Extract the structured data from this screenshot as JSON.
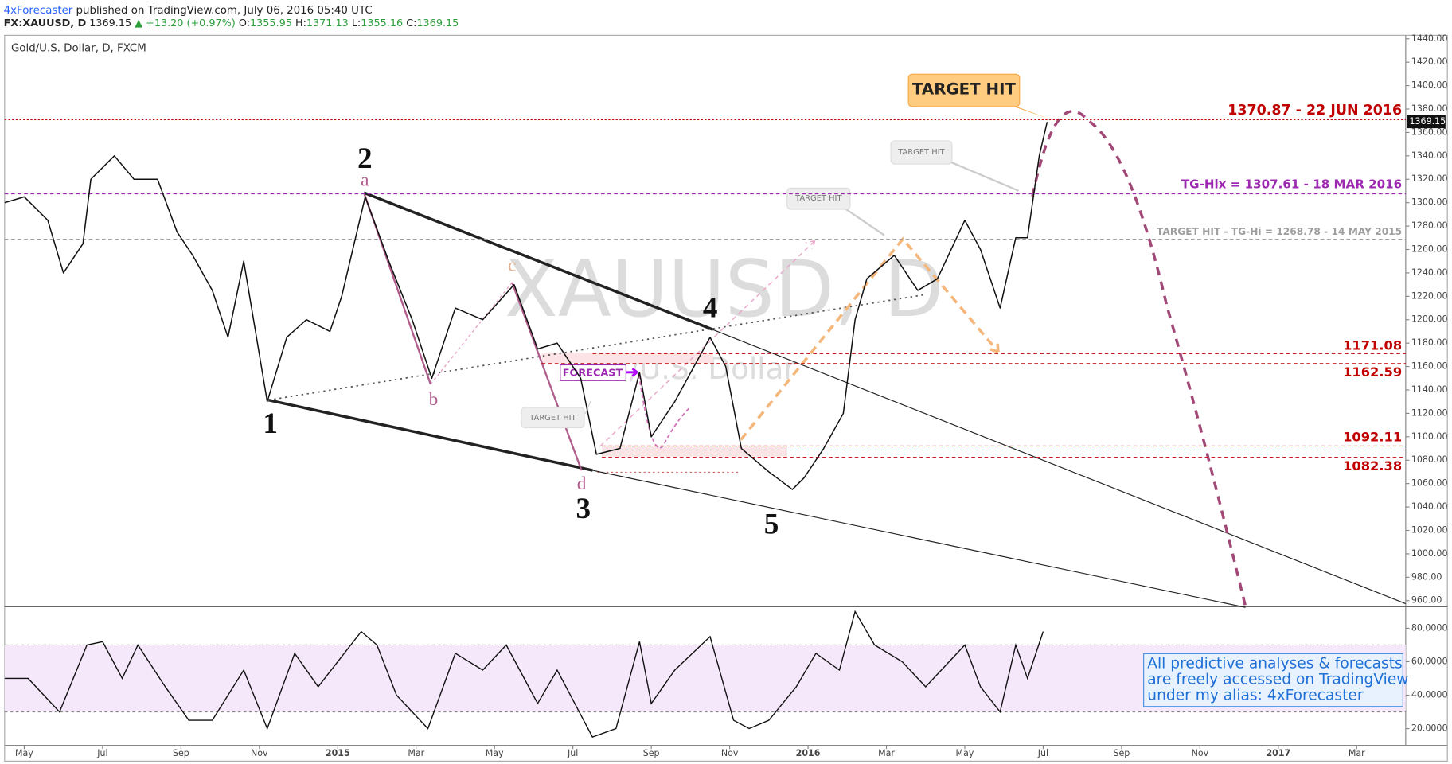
{
  "chart_data": {
    "type": "line",
    "publisher": "4xForecaster",
    "published": "published on TradingView.com, July 06, 2016 05:40 UTC",
    "symbol": "FX:XAUUSD, D",
    "last": 1369.15,
    "change": "+13.20 (+0.97%)",
    "ohlc": [
      {
        "label": "O:",
        "value": 1355.95
      },
      {
        "label": "H:",
        "value": 1371.13
      },
      {
        "label": "L:",
        "value": 1355.16
      },
      {
        "label": "C:",
        "value": 1369.15
      }
    ],
    "title": "Gold/U.S. Dollar, D, FXCM",
    "watermark": [
      "XAUUSD, D",
      "Gold/U.S. Dollar"
    ],
    "xlim": [
      -0.5,
      35.25
    ],
    "xticks": [
      {
        "value": 0,
        "label": "May"
      },
      {
        "value": 2,
        "label": "Jul"
      },
      {
        "value": 4,
        "label": "Sep"
      },
      {
        "value": 6,
        "label": "Nov"
      },
      {
        "value": 8,
        "label": "2015"
      },
      {
        "value": 10,
        "label": "Mar"
      },
      {
        "value": 12,
        "label": "May"
      },
      {
        "value": 14,
        "label": "Jul"
      },
      {
        "value": 16,
        "label": "Sep"
      },
      {
        "value": 18,
        "label": "Nov"
      },
      {
        "value": 20,
        "label": "2016"
      },
      {
        "value": 22,
        "label": "Mar"
      },
      {
        "value": 24,
        "label": "May"
      },
      {
        "value": 26,
        "label": "Jul"
      },
      {
        "value": 28,
        "label": "Sep"
      },
      {
        "value": 30,
        "label": "Nov"
      },
      {
        "value": 32,
        "label": "2017"
      },
      {
        "value": 34,
        "label": "Mar"
      }
    ],
    "ylim": [
      955,
      1443
    ],
    "yticks": [
      {
        "value": 960,
        "label": "960.00"
      },
      {
        "value": 980,
        "label": "980.00"
      },
      {
        "value": 1000,
        "label": "1000.00"
      },
      {
        "value": 1020,
        "label": "1020.00"
      },
      {
        "value": 1040,
        "label": "1040.00"
      },
      {
        "value": 1060,
        "label": "1060.00"
      },
      {
        "value": 1080,
        "label": "1080.00"
      },
      {
        "value": 1100,
        "label": "1100.00"
      },
      {
        "value": 1120,
        "label": "1120.00"
      },
      {
        "value": 1140,
        "label": "1140.00"
      },
      {
        "value": 1160,
        "label": "1160.00"
      },
      {
        "value": 1180,
        "label": "1180.00"
      },
      {
        "value": 1200,
        "label": "1200.00"
      },
      {
        "value": 1220,
        "label": "1220.00"
      },
      {
        "value": 1240,
        "label": "1240.00"
      },
      {
        "value": 1260,
        "label": "1260.00"
      },
      {
        "value": 1280,
        "label": "1280.00"
      },
      {
        "value": 1300,
        "label": "1300.00"
      },
      {
        "value": 1320,
        "label": "1320.00"
      },
      {
        "value": 1340,
        "label": "1340.00"
      },
      {
        "value": 1360,
        "label": "1360.00"
      },
      {
        "value": 1380,
        "label": "1380.00"
      },
      {
        "value": 1400,
        "label": "1400.00"
      },
      {
        "value": 1420,
        "label": "1420.00"
      },
      {
        "value": 1440,
        "label": "1440.00"
      }
    ],
    "grid": false,
    "series": [
      {
        "color": "#111111",
        "x": [
          -0.5,
          0,
          0.6,
          1.0,
          1.5,
          1.7,
          2.3,
          2.8,
          3.4,
          3.9,
          4.3,
          4.8,
          5.2,
          5.6,
          6.2,
          6.7,
          7.2,
          7.8,
          8.1,
          8.7,
          9.3,
          9.9,
          10.4,
          11.0,
          11.7,
          12.5,
          13.1,
          13.6,
          14.2,
          14.6,
          15.2,
          15.7,
          16.0,
          16.6,
          17.5,
          17.9,
          18.3,
          19.0,
          19.6,
          19.9,
          20.4,
          20.9,
          21.2,
          21.5,
          22.2,
          22.8,
          23.3,
          24.0,
          24.4,
          24.9,
          25.3,
          25.6,
          25.9,
          26.1
        ],
        "values": [
          1300,
          1305,
          1285,
          1240,
          1265,
          1320,
          1340,
          1320,
          1320,
          1275,
          1255,
          1225,
          1185,
          1250,
          1130,
          1185,
          1200,
          1190,
          1220,
          1305,
          1250,
          1200,
          1150,
          1210,
          1200,
          1230,
          1175,
          1180,
          1150,
          1085,
          1090,
          1155,
          1100,
          1130,
          1185,
          1160,
          1090,
          1070,
          1055,
          1065,
          1090,
          1120,
          1200,
          1235,
          1255,
          1225,
          1235,
          1285,
          1260,
          1210,
          1270,
          1270,
          1340,
          1369
        ]
      }
    ],
    "levels": [
      {
        "value": 1370.87,
        "label": "1370.87 - 22 JUN 2016",
        "color": "#c00000"
      },
      {
        "value": 1307.61,
        "label": "TG-Hix = 1307.61 - 18 MAR 2016",
        "color": "#9c27b0"
      },
      {
        "value": 1268.78,
        "label": "TARGET HIT - TG-Hi = 1268.78 - 14 MAY 2015",
        "color": "#9e9e9e"
      },
      {
        "value": 1171.08,
        "color": "#c00000"
      },
      {
        "value": 1162.59,
        "color": "#c00000"
      },
      {
        "value": 1092.11,
        "color": "#c00000"
      },
      {
        "value": 1082.38,
        "color": "#c00000"
      }
    ],
    "waves": [
      "1",
      "2",
      "3",
      "4",
      "5"
    ],
    "subwaves": [
      "a",
      "b",
      "c",
      "d"
    ],
    "target_hit_main": "TARGET HIT",
    "target_hit_small": [
      "TARGET HIT",
      "TARGET HIT",
      "TARGET HIT"
    ],
    "forecast": "FORECAST",
    "note": [
      "All predictive analyses & forecasts",
      "are freely accessed on TradingView",
      "under my alias: 4xForecaster"
    ],
    "rsi": {
      "color": "#111111",
      "ylim": [
        10,
        93
      ],
      "bands": [
        30,
        70
      ],
      "yticks": [
        {
          "value": 20,
          "label": "20.0000"
        },
        {
          "value": 40,
          "label": "40.0000"
        },
        {
          "value": 60,
          "label": "60.0000"
        },
        {
          "value": 80,
          "label": "80.0000"
        }
      ],
      "x": [
        -0.5,
        0.1,
        0.9,
        1.6,
        2.0,
        2.5,
        2.9,
        3.6,
        4.2,
        4.8,
        5.6,
        6.2,
        6.9,
        7.5,
        8.6,
        9.0,
        9.5,
        10.3,
        11.0,
        11.7,
        12.3,
        13.1,
        13.6,
        14.5,
        15.1,
        15.7,
        16.0,
        16.6,
        17.5,
        18.1,
        18.5,
        19.0,
        19.7,
        20.2,
        20.8,
        21.2,
        21.7,
        22.4,
        23.0,
        24.0,
        24.4,
        24.9,
        25.3,
        25.6,
        26.0
      ],
      "values": [
        50,
        50,
        30,
        70,
        72,
        50,
        70,
        45,
        25,
        25,
        55,
        20,
        65,
        45,
        78,
        70,
        40,
        20,
        65,
        55,
        70,
        35,
        55,
        15,
        20,
        72,
        35,
        55,
        75,
        25,
        20,
        25,
        45,
        65,
        55,
        90,
        70,
        60,
        45,
        70,
        45,
        30,
        70,
        50,
        78
      ]
    }
  }
}
